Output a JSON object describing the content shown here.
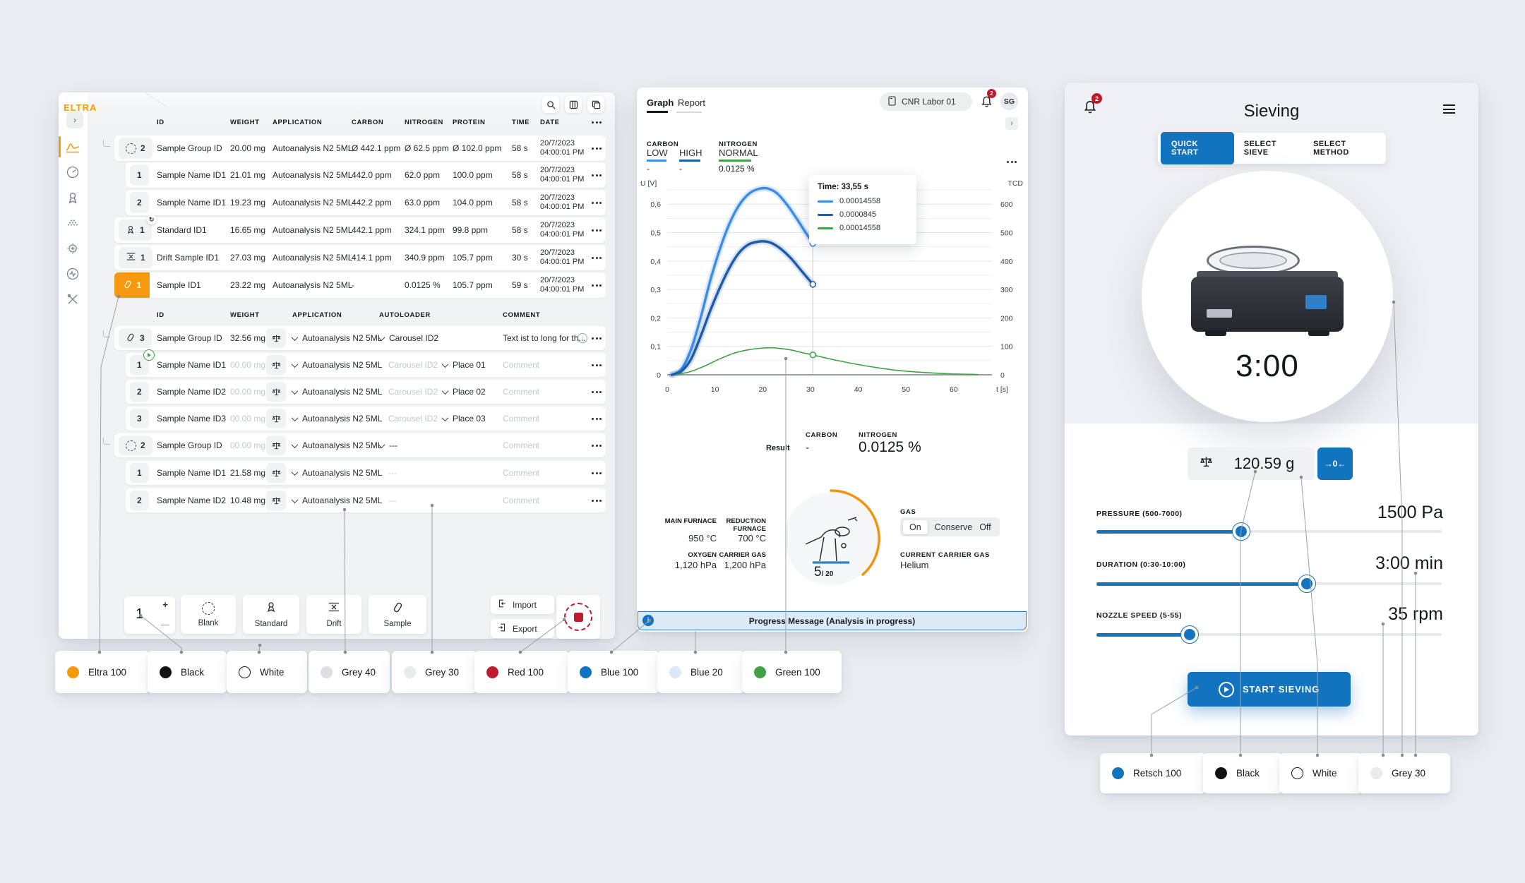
{
  "colors": {
    "eltra_orange": "#F59A0F",
    "retsch_blue": "#1273BE",
    "red": "#BE1B2E",
    "green": "#3FA244",
    "light_blue_line": "#3D8CE8",
    "dark_blue_line": "#1E5BAD",
    "progress_bg": "#DCE9F7",
    "progress_border": "#2E7CC3"
  },
  "left_app": {
    "logo": "ELTRA",
    "table1": {
      "headers": [
        "ID",
        "WEIGHT",
        "APPLICATION",
        "CARBON",
        "NITROGEN",
        "PROTEIN",
        "TIME",
        "DATE"
      ],
      "rows": [
        {
          "num": "2",
          "id": "Sample Group ID",
          "weight": "20.00 mg",
          "application": "Autoanalysis N2 5ML",
          "carbon": "Ø 442.1 ppm",
          "nitrogen": "Ø 62.5 ppm",
          "protein": "Ø 102.0 ppm",
          "time": "58 s",
          "date1": "20/7/2023",
          "date2": "04:00:01 PM"
        },
        {
          "num": "1",
          "id": "Sample Name ID1",
          "weight": "21.01 mg",
          "application": "Autoanalysis N2 5ML",
          "carbon": "442.0 ppm",
          "nitrogen": "62.0 ppm",
          "protein": "100.0 ppm",
          "time": "58 s",
          "date1": "20/7/2023",
          "date2": "04:00:01 PM"
        },
        {
          "num": "2",
          "id": "Sample Name ID1",
          "weight": "19.23 mg",
          "application": "Autoanalysis N2 5ML",
          "carbon": "442.2 ppm",
          "nitrogen": "63.0 ppm",
          "protein": "104.0 ppm",
          "time": "58 s",
          "date1": "20/7/2023",
          "date2": "04:00:01 PM"
        },
        {
          "num": "1",
          "id": "Standard ID1",
          "weight": "16.65 mg",
          "application": "Autoanalysis N2 5ML",
          "carbon": "442.1 ppm",
          "nitrogen": "324.1 ppm",
          "protein": "99.8 ppm",
          "time": "58 s",
          "date1": "20/7/2023",
          "date2": "04:00:01 PM"
        },
        {
          "num": "1",
          "id": "Drift Sample ID1",
          "weight": "27.03 mg",
          "application": "Autoanalysis N2 5ML",
          "carbon": "414.1 ppm",
          "nitrogen": "340.9 ppm",
          "protein": "105.7 ppm",
          "time": "30 s",
          "date1": "20/7/2023",
          "date2": "04:00:01 PM"
        },
        {
          "num": "1",
          "id": "Sample ID1",
          "weight": "23.22 mg",
          "application": "Autoanalysis N2 5ML",
          "carbon": "-",
          "nitrogen": "0.0125 %",
          "protein": "105.7 ppm",
          "time": "59 s",
          "date1": "20/7/2023",
          "date2": "04:00:01 PM"
        }
      ]
    },
    "table2": {
      "headers": [
        "ID",
        "WEIGHT",
        "APPLICATION",
        "AUTOLOADER",
        "COMMENT"
      ],
      "rows": [
        {
          "num": "3",
          "id": "Sample Group ID",
          "weight": "32.56 mg",
          "application": "Autoanalysis N2 5ML",
          "autoloader": "Carousel ID2",
          "comment": "Text ist to long for th..."
        },
        {
          "num": "1",
          "id": "Sample Name ID1",
          "weight": "00.00 mg",
          "application": "Autoanalysis N2 5ML",
          "autoloader": "Carousel ID2",
          "place": "Place 01",
          "comment": "Comment"
        },
        {
          "num": "2",
          "id": "Sample Name ID2",
          "weight": "00.00 mg",
          "application": "Autoanalysis N2 5ML",
          "autoloader": "Carousel ID2",
          "place": "Place 02",
          "comment": "Comment"
        },
        {
          "num": "3",
          "id": "Sample Name ID3",
          "weight": "00.00 mg",
          "application": "Autoanalysis N2 5ML",
          "autoloader": "Carousel ID2",
          "place": "Place 03",
          "comment": "Comment"
        },
        {
          "num": "2",
          "id": "Sample Group ID",
          "weight": "00.00 mg",
          "application": "Autoanalysis N2 5ML",
          "autoloader": "---",
          "comment": "Comment"
        },
        {
          "num": "1",
          "id": "Sample Name ID1",
          "weight": "21.58 mg",
          "application": "Autoanalysis N2 5ML",
          "autoloader": "---",
          "comment": "Comment"
        },
        {
          "num": "2",
          "id": "Sample Name ID2",
          "weight": "10.48 mg",
          "application": "Autoanalysis N2 5ML",
          "autoloader": "---",
          "comment": "Comment"
        }
      ]
    },
    "toolbar": {
      "counter": "1",
      "plus": "+",
      "blank": "Blank",
      "standard": "Standard",
      "drift": "Drift",
      "sample": "Sample",
      "import": "Import",
      "export": "Export"
    }
  },
  "middle_app": {
    "tabs": {
      "graph": "Graph",
      "report": "Report"
    },
    "device_chip": "CNR Labor 01",
    "notification_count": "2",
    "avatar": "SG",
    "legend": {
      "carbon": "CARBON",
      "low": "LOW",
      "low_value": "-",
      "high": "HIGH",
      "high_value": "-",
      "nitrogen": "NITROGEN",
      "normal": "NORMAL",
      "normal_value": "0.0125 %"
    },
    "chart_data": {
      "type": "line",
      "xlabel": "t [s]",
      "ylabel_left": "U [V]",
      "ylabel_right": "TCD",
      "x_ticks": [
        0,
        10,
        20,
        30,
        40,
        50,
        60
      ],
      "y_ticks_left": [
        "0",
        "0,1",
        "0,2",
        "0,3",
        "0,4",
        "0,5",
        "0,6"
      ],
      "y_ticks_right": [
        "0",
        "100",
        "200",
        "300",
        "400",
        "500",
        "600"
      ],
      "xlim": [
        0,
        68
      ],
      "ylim": [
        0,
        0.68
      ],
      "cursor_time": 30.5,
      "tooltip": {
        "title": "Time: 33,55 s",
        "entries": [
          {
            "color": "#3D8CE8",
            "value": "0.00014558"
          },
          {
            "color": "#1E5BAD",
            "value": "0.0000845"
          },
          {
            "color": "#3FA244",
            "value": "0.00014558"
          }
        ]
      },
      "series": [
        {
          "name": "carbon-low",
          "color": "#3D8CE8",
          "width": 3.5,
          "glow": true,
          "marker": [
            30.5,
            0.462
          ],
          "points": [
            [
              1,
              0
            ],
            [
              3,
              0.02
            ],
            [
              5,
              0.09
            ],
            [
              7,
              0.2
            ],
            [
              9,
              0.33
            ],
            [
              11,
              0.44
            ],
            [
              13,
              0.53
            ],
            [
              15,
              0.595
            ],
            [
              17,
              0.635
            ],
            [
              19,
              0.653
            ],
            [
              21,
              0.655
            ],
            [
              23,
              0.638
            ],
            [
              25,
              0.6
            ],
            [
              27,
              0.552
            ],
            [
              29,
              0.5
            ],
            [
              30.5,
              0.462
            ]
          ]
        },
        {
          "name": "carbon-high",
          "color": "#1E5BAD",
          "width": 3.5,
          "glow": true,
          "marker": [
            30.5,
            0.318
          ],
          "points": [
            [
              1,
              0
            ],
            [
              3,
              0.013
            ],
            [
              5,
              0.055
            ],
            [
              7,
              0.135
            ],
            [
              9,
              0.225
            ],
            [
              11,
              0.305
            ],
            [
              13,
              0.375
            ],
            [
              15,
              0.428
            ],
            [
              17,
              0.458
            ],
            [
              19,
              0.468
            ],
            [
              20.5,
              0.469
            ],
            [
              22,
              0.462
            ],
            [
              24,
              0.44
            ],
            [
              26,
              0.408
            ],
            [
              28,
              0.368
            ],
            [
              30.5,
              0.318
            ]
          ]
        },
        {
          "name": "nitrogen",
          "color": "#3FA244",
          "width": 1.6,
          "glow": false,
          "marker": [
            30.5,
            0.07
          ],
          "points": [
            [
              2,
              0
            ],
            [
              5,
              0.012
            ],
            [
              8,
              0.032
            ],
            [
              11,
              0.056
            ],
            [
              14,
              0.076
            ],
            [
              17,
              0.088
            ],
            [
              20,
              0.094
            ],
            [
              22,
              0.095
            ],
            [
              24,
              0.092
            ],
            [
              26,
              0.087
            ],
            [
              28,
              0.079
            ],
            [
              30.5,
              0.07
            ],
            [
              33,
              0.06
            ],
            [
              36,
              0.049
            ],
            [
              40,
              0.036
            ],
            [
              44,
              0.025
            ],
            [
              48,
              0.016
            ],
            [
              52,
              0.01
            ],
            [
              56,
              0.006
            ],
            [
              60,
              0.003
            ],
            [
              65,
              0.001
            ]
          ]
        }
      ]
    },
    "result": {
      "label": "Result",
      "carbon_label": "CARBON",
      "carbon_value": "-",
      "nitrogen_label": "NITROGEN",
      "nitrogen_value": "0.0125 %"
    },
    "furnace": {
      "main_label": "MAIN FURNACE",
      "main_value": "950 °C",
      "reduction_label": "REDUCTION FURNACE",
      "reduction_value": "700 °C",
      "oxygen_label": "OXYGEN",
      "oxygen_value": "1,120 hPa",
      "carrier_label": "CARRIER GAS",
      "carrier_value": "1,200 hPa"
    },
    "gauge": {
      "value": "5",
      "total": "/ 20"
    },
    "gas": {
      "label": "GAS",
      "options": [
        "On",
        "Conserve",
        "Off"
      ],
      "selected": "On"
    },
    "current_carrier": {
      "label": "CURRENT CARRIER GAS",
      "value": "Helium"
    },
    "progress": "Progress Message (Analysis in progress)"
  },
  "sieving_app": {
    "notification_count": "2",
    "title": "Sieving",
    "tabs": [
      {
        "label": "QUICK START",
        "active": true
      },
      {
        "label": "SELECT SIEVE",
        "active": false
      },
      {
        "label": "SELECT METHOD",
        "active": false
      }
    ],
    "timer": "3:00",
    "weight": {
      "value": "120.59 g",
      "tare": "→0←"
    },
    "sliders": [
      {
        "label": "PRESSURE (500-7000)",
        "value": "1500 Pa",
        "pct": 42
      },
      {
        "label": "DURATION (0:30-10:00)",
        "value": "3:00 min",
        "pct": 61
      },
      {
        "label": "NOZZLE SPEED (5-55)",
        "value": "35 rpm",
        "pct": 27
      }
    ],
    "start_button": "START SIEVING",
    "swatches": [
      {
        "name": "Retsch 100",
        "color": "#1273BE"
      },
      {
        "name": "Black",
        "color": "#111111"
      },
      {
        "name": "White",
        "color": "#FFFFFF"
      },
      {
        "name": "Grey 30",
        "color": "#E9EBEE"
      }
    ]
  },
  "eltra_swatches": [
    {
      "name": "Eltra 100",
      "color": "#F59A0F"
    },
    {
      "name": "Black",
      "color": "#111111"
    },
    {
      "name": "White",
      "color": "#FFFFFF"
    },
    {
      "name": "Grey 40",
      "color": "#DCDFE3"
    },
    {
      "name": "Grey 30",
      "color": "#E9EBEE"
    },
    {
      "name": "Red 100",
      "color": "#BE1B2E"
    },
    {
      "name": "Blue 100",
      "color": "#1273BE"
    },
    {
      "name": "Blue 20",
      "color": "#DBE9F6"
    },
    {
      "name": "Green 100",
      "color": "#43A047"
    }
  ]
}
